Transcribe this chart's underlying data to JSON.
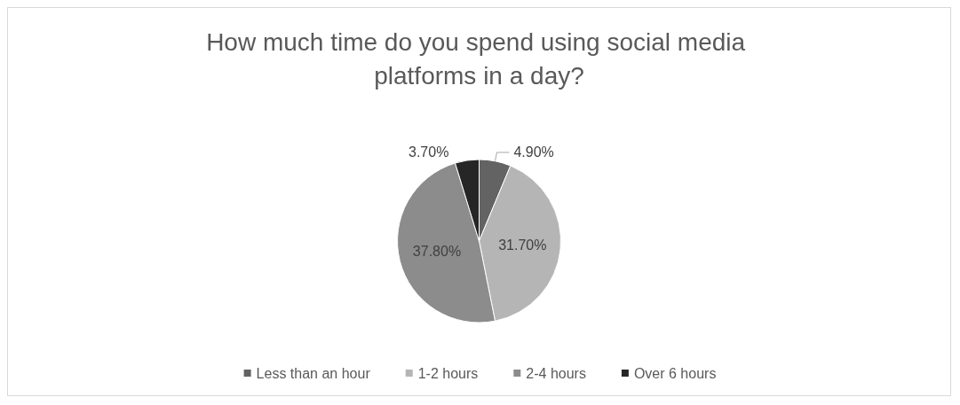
{
  "chart_data": {
    "type": "pie",
    "title": "How much time do you spend using social media platforms in a day?",
    "categories": [
      "Less than an hour",
      "1-2 hours",
      "2-4 hours",
      "Over 6 hours"
    ],
    "values": [
      4.9,
      31.7,
      37.8,
      3.7
    ],
    "value_labels": [
      "4.90%",
      "31.70%",
      "37.80%",
      "3.70%"
    ],
    "colors": [
      "#636363",
      "#b5b5b5",
      "#8c8c8c",
      "#262626"
    ],
    "legend": "bottom"
  }
}
